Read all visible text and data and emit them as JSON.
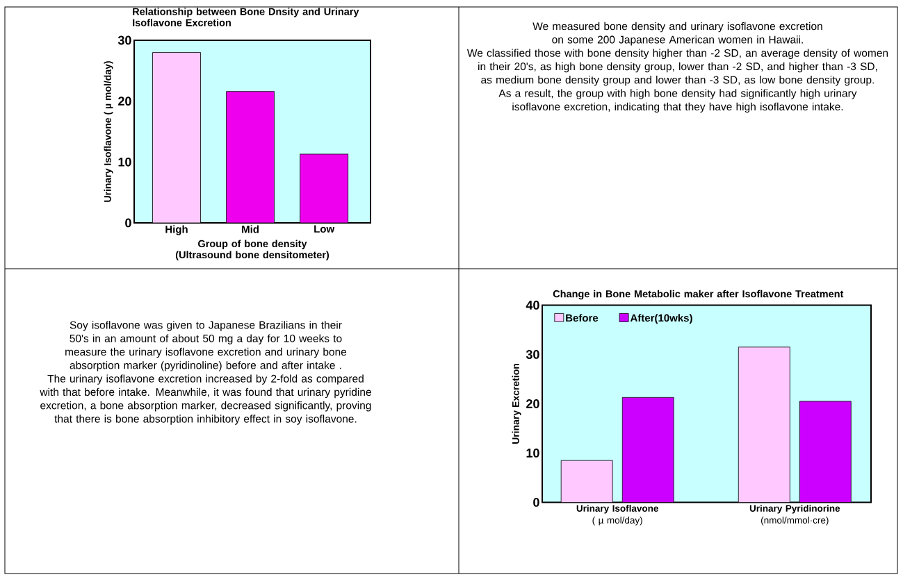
{
  "chart_data": [
    {
      "type": "bar",
      "title": "Relationship between Bone Dnsity and Urinary Isoflavone Excretion",
      "xlabel": "Group of bone density (Ultrasound bone densitometer)",
      "ylabel": "Urinary Isoflavone ( µ mol/day)",
      "categories": [
        "High",
        "Mid",
        "Low"
      ],
      "values": [
        28,
        21.6,
        11.3
      ],
      "colors": [
        "#ffc8ff",
        "#ee00ee",
        "#ee00ee"
      ],
      "ylim": [
        0,
        30
      ],
      "yticks": [
        0,
        10,
        20,
        30
      ]
    },
    {
      "type": "other",
      "annotations": [
        "We measured bone density and urinary isoflavone excretion on some 200 Japanese American women in Hawaii.",
        "We classified those with bone density higher than -2 SD, an average density of women in their 20's, as high bone density group, lower than -2 SD, and higher than -3 SD, as medium bone density group and lower than -3 SD, as low bone density group.",
        "As a result, the group with high bone density had significantly high urinary isoflavone excretion, indicating that they have high isoflavone intake."
      ]
    },
    {
      "type": "other",
      "annotations": [
        "Soy isoflavone was given to Japanese Brazilians in their 50's in an amount of about 50 mg a day for 10 weeks to measure the urinary isoflavone excretion and urinary bone absorption marker (pyridinoline) before and after intake .",
        "The urinary isoflavone excretion increased by 2-fold as compared with that before intake. Meanwhile, it was found that urinary pyridine excretion, a bone absorption marker, decreased significantly, proving that there is bone absorption inhibitory effect in soy isoflavone."
      ]
    },
    {
      "type": "bar",
      "title": "Change in Bone Metabolic maker after Isoflavone Treatment",
      "ylabel": "Urinary Excretion",
      "categories": [
        "**Urinary Isoflavone** ( µ mol/day)",
        "**Urinary Pyridinorine** (nmol/mmol·cre)"
      ],
      "ylim": [
        0,
        40
      ],
      "yticks": [
        0,
        10,
        20,
        30,
        40
      ],
      "legend": "top left",
      "series": [
        {
          "name": "Before",
          "color": "#ffc8ff",
          "values": [
            8.5,
            31.5
          ]
        },
        {
          "name": "After(10wks)",
          "color": "#cc00ff",
          "values": [
            21.3,
            20.5
          ]
        }
      ]
    }
  ]
}
